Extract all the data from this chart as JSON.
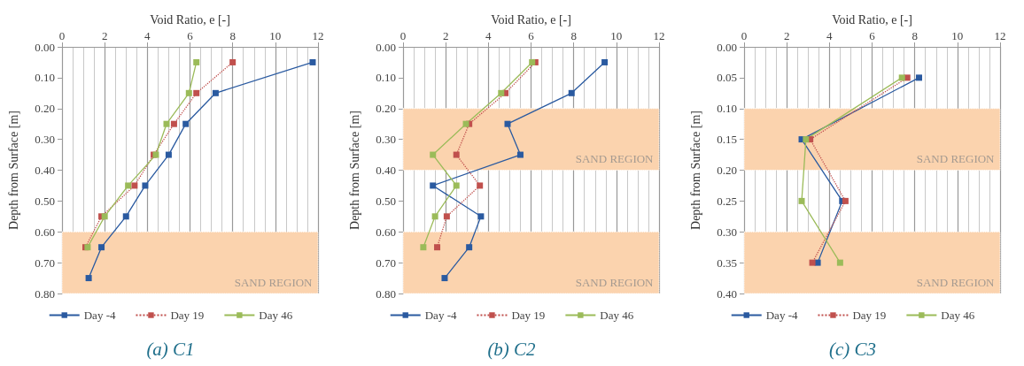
{
  "chart_data": [
    {
      "type": "line",
      "title": "(a) C1",
      "xlabel": "Void Ratio, e [-]",
      "ylabel": "Depth from Surface [m]",
      "xlim": [
        0,
        12
      ],
      "xticks": [
        0,
        2,
        4,
        6,
        8,
        10,
        12
      ],
      "ylim": [
        0.8,
        0
      ],
      "yticks": [
        {
          "value": 0,
          "label": "0.00"
        },
        {
          "value": 0.1,
          "label": "0.10"
        },
        {
          "value": 0.2,
          "label": "0.20"
        },
        {
          "value": 0.3,
          "label": "0.30"
        },
        {
          "value": 0.4,
          "label": "0.40"
        },
        {
          "value": 0.5,
          "label": "0.50"
        },
        {
          "value": 0.6,
          "label": "0.60"
        },
        {
          "value": 0.7,
          "label": "0.70"
        },
        {
          "value": 0.8,
          "label": "0.80"
        }
      ],
      "grid": "x",
      "legend": "bottom",
      "marker": "square",
      "bands": [
        {
          "axis": "y",
          "from": 0.6,
          "to": 0.8,
          "label": "SAND REGION",
          "color": "#fbd3ae"
        }
      ],
      "series": [
        {
          "name": "Day -4",
          "color": "#2a5aa0",
          "line_style": "solid",
          "x": [
            11.75,
            7.2,
            5.8,
            5.0,
            3.9,
            3.0,
            1.85,
            1.25
          ],
          "values": [
            0.05,
            0.15,
            0.25,
            0.35,
            0.45,
            0.55,
            0.65,
            0.75
          ]
        },
        {
          "name": "Day 19",
          "color": "#c0504d",
          "line_style": "dotted",
          "x": [
            8.0,
            6.3,
            5.25,
            4.3,
            3.4,
            1.85,
            1.1
          ],
          "values": [
            0.05,
            0.15,
            0.25,
            0.35,
            0.45,
            0.55,
            0.65
          ]
        },
        {
          "name": "Day 46",
          "color": "#9bbb59",
          "line_style": "solid",
          "x": [
            6.3,
            5.95,
            4.9,
            4.4,
            3.1,
            2.0,
            1.2
          ],
          "values": [
            0.05,
            0.15,
            0.25,
            0.35,
            0.45,
            0.55,
            0.65
          ]
        }
      ]
    },
    {
      "type": "line",
      "title": "(b) C2",
      "xlabel": "Void Ratio, e [-]",
      "ylabel": "Depth from Surface [m]",
      "xlim": [
        0,
        12
      ],
      "xticks": [
        0,
        2,
        4,
        6,
        8,
        10,
        12
      ],
      "ylim": [
        0.8,
        0
      ],
      "yticks": [
        {
          "value": 0,
          "label": "0.00"
        },
        {
          "value": 0.1,
          "label": "0.10"
        },
        {
          "value": 0.2,
          "label": "0.20"
        },
        {
          "value": 0.3,
          "label": "0.30"
        },
        {
          "value": 0.4,
          "label": "0.40"
        },
        {
          "value": 0.5,
          "label": "0.50"
        },
        {
          "value": 0.6,
          "label": "0.60"
        },
        {
          "value": 0.7,
          "label": "0.70"
        },
        {
          "value": 0.8,
          "label": "0.80"
        }
      ],
      "grid": "x",
      "legend": "bottom",
      "marker": "square",
      "bands": [
        {
          "axis": "y",
          "from": 0.2,
          "to": 0.4,
          "label": "SAND REGION",
          "color": "#fbd3ae"
        },
        {
          "axis": "y",
          "from": 0.6,
          "to": 0.8,
          "label": "SAND REGION",
          "color": "#fbd3ae"
        }
      ],
      "series": [
        {
          "name": "Day -4",
          "color": "#2a5aa0",
          "line_style": "solid",
          "x": [
            9.45,
            7.9,
            4.9,
            5.5,
            1.4,
            3.65,
            3.1,
            1.95
          ],
          "values": [
            0.05,
            0.15,
            0.25,
            0.35,
            0.45,
            0.55,
            0.65,
            0.75
          ]
        },
        {
          "name": "Day 19",
          "color": "#c0504d",
          "line_style": "dotted",
          "x": [
            6.2,
            4.8,
            3.1,
            2.5,
            3.6,
            2.05,
            1.6
          ],
          "values": [
            0.05,
            0.15,
            0.25,
            0.35,
            0.45,
            0.55,
            0.65
          ]
        },
        {
          "name": "Day 46",
          "color": "#9bbb59",
          "line_style": "solid",
          "x": [
            6.05,
            4.6,
            2.95,
            1.4,
            2.5,
            1.5,
            0.95
          ],
          "values": [
            0.05,
            0.15,
            0.25,
            0.35,
            0.45,
            0.55,
            0.65
          ]
        }
      ]
    },
    {
      "type": "line",
      "title": "(c) C3",
      "xlabel": "Void Ratio, e [-]",
      "ylabel": "Depth from Surface [m]",
      "xlim": [
        0,
        12
      ],
      "xticks": [
        0,
        2,
        4,
        6,
        8,
        10,
        12
      ],
      "ylim": [
        0.4,
        0
      ],
      "yticks": [
        {
          "value": 0,
          "label": "0.00"
        },
        {
          "value": 0.05,
          "label": "0.05"
        },
        {
          "value": 0.1,
          "label": "0.10"
        },
        {
          "value": 0.15,
          "label": "0.15"
        },
        {
          "value": 0.2,
          "label": "0.20"
        },
        {
          "value": 0.25,
          "label": "0.25"
        },
        {
          "value": 0.3,
          "label": "0.30"
        },
        {
          "value": 0.35,
          "label": "0.35"
        },
        {
          "value": 0.4,
          "label": "0.40"
        }
      ],
      "grid": "x",
      "legend": "bottom",
      "marker": "square",
      "bands": [
        {
          "axis": "y",
          "from": 0.1,
          "to": 0.2,
          "label": "SAND REGION",
          "color": "#fbd3ae"
        },
        {
          "axis": "y",
          "from": 0.3,
          "to": 0.4,
          "label": "SAND REGION",
          "color": "#fbd3ae"
        }
      ],
      "series": [
        {
          "name": "Day -4",
          "color": "#2a5aa0",
          "line_style": "solid",
          "x": [
            8.2,
            2.7,
            4.6,
            3.45
          ],
          "values": [
            0.05,
            0.15,
            0.25,
            0.35
          ]
        },
        {
          "name": "Day 19",
          "color": "#c0504d",
          "line_style": "dotted",
          "x": [
            7.65,
            3.1,
            4.75,
            3.2
          ],
          "values": [
            0.05,
            0.15,
            0.25,
            0.35
          ]
        },
        {
          "name": "Day 46",
          "color": "#9bbb59",
          "line_style": "solid",
          "x": [
            7.4,
            2.9,
            2.7,
            4.5
          ],
          "values": [
            0.05,
            0.15,
            0.25,
            0.35
          ]
        }
      ]
    }
  ]
}
